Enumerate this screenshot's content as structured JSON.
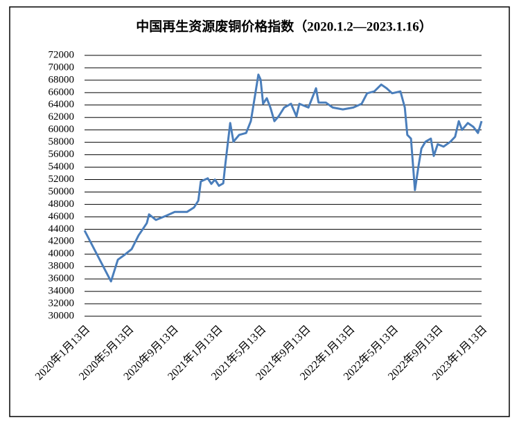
{
  "chart_data": {
    "type": "line",
    "title": "中国再生资源废铜价格指数（2020.1.2—2023.1.16）",
    "x": [
      "2020-01-13",
      "2020-03-26",
      "2020-04-14",
      "2020-05-03",
      "2020-05-22",
      "2020-06-10",
      "2020-07-03",
      "2020-07-09",
      "2020-07-28",
      "2020-08-26",
      "2020-09-18",
      "2020-10-22",
      "2020-11-10",
      "2020-11-22",
      "2020-11-29",
      "2020-12-18",
      "2020-12-28",
      "2021-01-07",
      "2021-01-18",
      "2021-01-30",
      "2021-02-04",
      "2021-02-18",
      "2021-02-27",
      "2021-03-15",
      "2021-04-03",
      "2021-04-16",
      "2021-04-27",
      "2021-05-07",
      "2021-05-13",
      "2021-05-20",
      "2021-05-30",
      "2021-06-09",
      "2021-06-20",
      "2021-07-02",
      "2021-07-17",
      "2021-08-05",
      "2021-08-20",
      "2021-08-28",
      "2021-09-22",
      "2021-10-13",
      "2021-10-20",
      "2021-11-09",
      "2021-11-28",
      "2021-12-26",
      "2022-01-24",
      "2022-02-16",
      "2022-03-03",
      "2022-03-23",
      "2022-04-11",
      "2022-04-26",
      "2022-05-11",
      "2022-06-03",
      "2022-06-15",
      "2022-06-22",
      "2022-07-02",
      "2022-07-13",
      "2022-07-23",
      "2022-07-31",
      "2022-08-11",
      "2022-08-26",
      "2022-09-03",
      "2022-09-14",
      "2022-09-30",
      "2022-10-19",
      "2022-11-01",
      "2022-11-11",
      "2022-11-20",
      "2022-12-06",
      "2022-12-21",
      "2023-01-03",
      "2023-01-13"
    ],
    "series": [
      {
        "color": "#4a7ebb",
        "values": [
          43800,
          35600,
          39100,
          39900,
          40800,
          43000,
          45000,
          46400,
          45500,
          46200,
          46800,
          46800,
          47500,
          48600,
          51700,
          52200,
          51300,
          52000,
          51000,
          51400,
          54200,
          61100,
          58100,
          59200,
          59500,
          61400,
          65300,
          68900,
          68100,
          64200,
          65100,
          63600,
          61400,
          62200,
          63600,
          64200,
          62200,
          64200,
          63600,
          66700,
          64400,
          64400,
          63600,
          63300,
          63600,
          64200,
          65900,
          66200,
          67300,
          66700,
          65900,
          66200,
          63600,
          59200,
          58600,
          50300,
          54200,
          57000,
          58100,
          58600,
          55800,
          57700,
          57300,
          58100,
          58900,
          61400,
          60000,
          61100,
          60500,
          59500,
          61400
        ]
      }
    ],
    "xlim": [
      "2020-01-13",
      "2023-01-13"
    ],
    "xticks": [
      {
        "value": "2020-01-13",
        "label": "2020年1月13日"
      },
      {
        "value": "2020-05-13",
        "label": "2020年5月13日"
      },
      {
        "value": "2020-09-13",
        "label": "2020年9月13日"
      },
      {
        "value": "2021-01-13",
        "label": "2021年1月13日"
      },
      {
        "value": "2021-05-13",
        "label": "2021年5月13日"
      },
      {
        "value": "2021-09-13",
        "label": "2021年9月13日"
      },
      {
        "value": "2022-01-13",
        "label": "2022年1月13日"
      },
      {
        "value": "2022-05-13",
        "label": "2022年5月13日"
      },
      {
        "value": "2022-09-13",
        "label": "2022年9月13日"
      },
      {
        "value": "2023-01-13",
        "label": "2023年1月13日"
      }
    ],
    "ylim": [
      30000,
      72000
    ],
    "yticks": [
      30000,
      32000,
      34000,
      36000,
      38000,
      40000,
      42000,
      44000,
      46000,
      48000,
      50000,
      52000,
      54000,
      56000,
      58000,
      60000,
      62000,
      64000,
      66000,
      68000,
      70000,
      72000
    ],
    "grid": true
  }
}
